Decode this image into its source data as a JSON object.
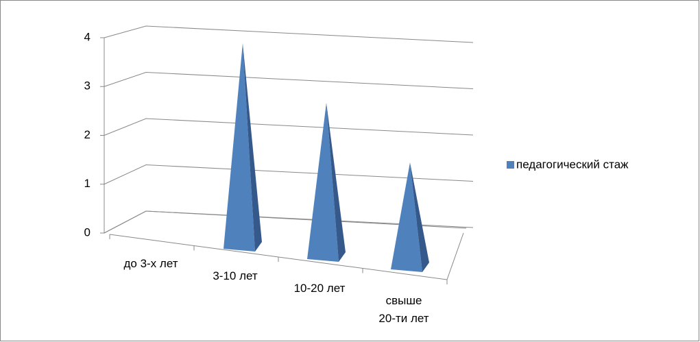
{
  "chart_data": {
    "type": "pyramid",
    "categories": [
      "до 3-х лет",
      "3-10 лет",
      "10-20 лет",
      "свыше 20-ти лет"
    ],
    "series": [
      {
        "name": "педагогический стаж",
        "color": "#4f81bd",
        "values": [
          0,
          4,
          3,
          2
        ]
      }
    ],
    "ylim": [
      0,
      4
    ],
    "yticks": [
      0,
      1,
      2,
      3,
      4
    ],
    "grid": true,
    "legend": "right"
  }
}
